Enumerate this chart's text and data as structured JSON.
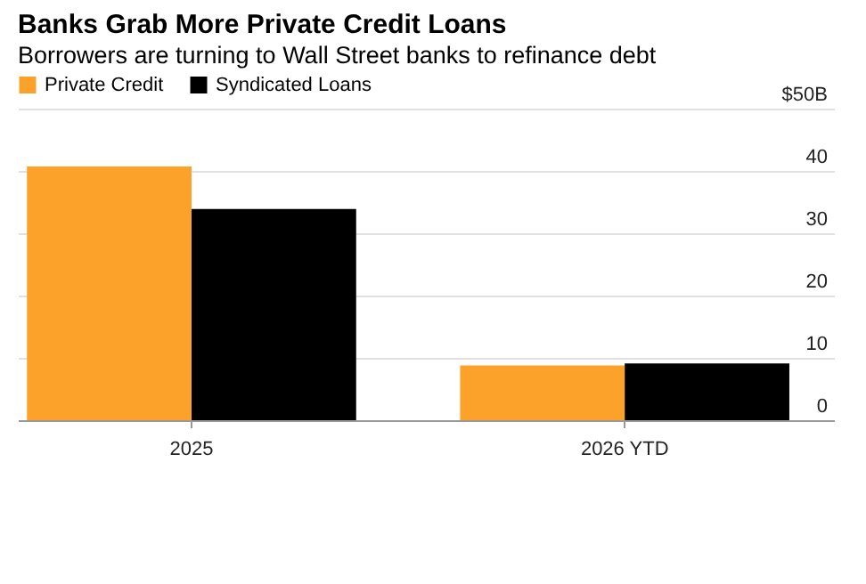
{
  "chart_data": {
    "type": "bar",
    "title": "Banks Grab More Private Credit Loans",
    "subtitle": "Borrowers are turning to Wall Street banks to refinance debt",
    "categories": [
      "2025",
      "2026 YTD"
    ],
    "series": [
      {
        "name": "Private Credit",
        "color": "#fca12a",
        "values": [
          40.7,
          8.8
        ]
      },
      {
        "name": "Syndicated Loans",
        "color": "#000000",
        "values": [
          33.9,
          9.1
        ]
      }
    ],
    "ylim": [
      0,
      50
    ],
    "yticks": [
      0,
      10,
      20,
      30,
      40,
      {
        "value": 50,
        "label": "$50B"
      }
    ],
    "grid": "y",
    "legend": "top left"
  }
}
